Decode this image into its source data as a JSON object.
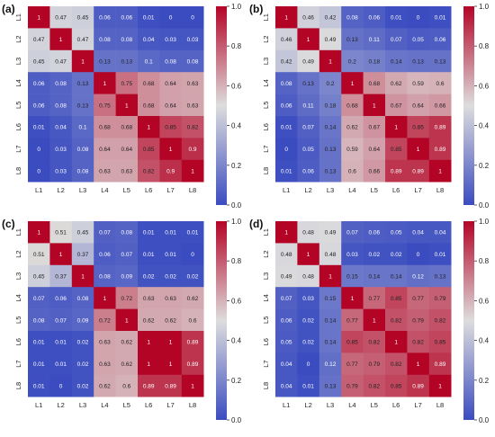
{
  "colormap": {
    "low": "#3b4cc0",
    "mid": "#dddddd",
    "high": "#b40426"
  },
  "chart_data": [
    {
      "type": "heatmap",
      "panel_label": "(a)",
      "categories": [
        "L1",
        "L2",
        "L3",
        "L4",
        "L5",
        "L6",
        "L7",
        "L8"
      ],
      "values": [
        [
          1,
          0.47,
          0.45,
          0.06,
          0.06,
          0.01,
          0,
          0
        ],
        [
          0.47,
          1,
          0.47,
          0.08,
          0.08,
          0.04,
          0.03,
          0.03
        ],
        [
          0.45,
          0.47,
          1,
          0.13,
          0.13,
          0.1,
          0.08,
          0.08
        ],
        [
          0.06,
          0.08,
          0.13,
          1,
          0.75,
          0.68,
          0.64,
          0.63
        ],
        [
          0.06,
          0.08,
          0.13,
          0.75,
          1,
          0.68,
          0.64,
          0.63
        ],
        [
          0.01,
          0.04,
          0.1,
          0.68,
          0.68,
          1,
          0.85,
          0.82
        ],
        [
          0,
          0.03,
          0.08,
          0.64,
          0.64,
          0.85,
          1,
          0.9
        ],
        [
          0,
          0.03,
          0.08,
          0.63,
          0.63,
          0.82,
          0.9,
          1
        ]
      ],
      "colorbar": {
        "range": [
          0,
          1
        ],
        "ticks": [
          "0.0",
          "0.2",
          "0.4",
          "0.6",
          "0.8",
          "1.0"
        ]
      }
    },
    {
      "type": "heatmap",
      "panel_label": "(b)",
      "categories": [
        "L1",
        "L2",
        "L3",
        "L4",
        "L5",
        "L6",
        "L7",
        "L8"
      ],
      "values": [
        [
          1,
          0.46,
          0.42,
          0.08,
          0.06,
          0.01,
          0,
          0.01
        ],
        [
          0.46,
          1,
          0.49,
          0.13,
          0.11,
          0.07,
          0.05,
          0.06
        ],
        [
          0.42,
          0.49,
          1,
          0.2,
          0.18,
          0.14,
          0.13,
          0.13
        ],
        [
          0.08,
          0.13,
          0.2,
          1,
          0.68,
          0.62,
          0.59,
          0.6
        ],
        [
          0.06,
          0.11,
          0.18,
          0.68,
          1,
          0.67,
          0.64,
          0.66
        ],
        [
          0.01,
          0.07,
          0.14,
          0.62,
          0.67,
          1,
          0.85,
          0.89
        ],
        [
          0,
          0.05,
          0.13,
          0.59,
          0.64,
          0.85,
          1,
          0.89
        ],
        [
          0.01,
          0.06,
          0.13,
          0.6,
          0.66,
          0.89,
          0.89,
          1
        ]
      ],
      "colorbar": {
        "range": [
          0,
          1
        ],
        "ticks": [
          "0.0",
          "0.2",
          "0.4",
          "0.6",
          "0.8",
          "1.0"
        ]
      }
    },
    {
      "type": "heatmap",
      "panel_label": "(c)",
      "categories": [
        "L1",
        "L2",
        "L3",
        "L4",
        "L5",
        "L6",
        "L7",
        "L8"
      ],
      "values": [
        [
          1,
          0.51,
          0.45,
          0.07,
          0.08,
          0.01,
          0.01,
          0.01
        ],
        [
          0.51,
          1,
          0.37,
          0.06,
          0.07,
          0.01,
          0.01,
          0
        ],
        [
          0.45,
          0.37,
          1,
          0.08,
          0.09,
          0.02,
          0.02,
          0.02
        ],
        [
          0.07,
          0.06,
          0.08,
          1,
          0.72,
          0.63,
          0.63,
          0.62
        ],
        [
          0.08,
          0.07,
          0.09,
          0.72,
          1,
          0.62,
          0.62,
          0.6
        ],
        [
          0.01,
          0.01,
          0.02,
          0.63,
          0.62,
          1,
          1,
          0.89
        ],
        [
          0.01,
          0.01,
          0.02,
          0.63,
          0.62,
          1,
          1,
          0.89
        ],
        [
          0.01,
          0,
          0.02,
          0.62,
          0.6,
          0.89,
          0.89,
          1
        ]
      ],
      "colorbar": {
        "range": [
          0,
          1
        ],
        "ticks": [
          "0.0",
          "0.2",
          "0.4",
          "0.6",
          "0.8",
          "1.0"
        ]
      }
    },
    {
      "type": "heatmap",
      "panel_label": "(d)",
      "categories": [
        "L1",
        "L2",
        "L3",
        "L4",
        "L5",
        "L6",
        "L7",
        "L8"
      ],
      "values": [
        [
          1,
          0.48,
          0.49,
          0.07,
          0.06,
          0.05,
          0.04,
          0.04
        ],
        [
          0.48,
          1,
          0.48,
          0.03,
          0.02,
          0.02,
          0,
          0.01
        ],
        [
          0.49,
          0.48,
          1,
          0.15,
          0.14,
          0.14,
          0.12,
          0.13
        ],
        [
          0.07,
          0.03,
          0.15,
          1,
          0.77,
          0.85,
          0.77,
          0.79
        ],
        [
          0.06,
          0.02,
          0.14,
          0.77,
          1,
          0.82,
          0.79,
          0.82
        ],
        [
          0.05,
          0.02,
          0.14,
          0.85,
          0.82,
          1,
          0.82,
          0.85
        ],
        [
          0.04,
          0,
          0.12,
          0.77,
          0.79,
          0.82,
          1,
          0.89
        ],
        [
          0.04,
          0.01,
          0.13,
          0.79,
          0.82,
          0.85,
          0.89,
          1
        ]
      ],
      "colorbar": {
        "range": [
          0,
          1
        ],
        "ticks": [
          "0.0",
          "0.2",
          "0.4",
          "0.6",
          "0.8",
          "1.0"
        ]
      }
    }
  ]
}
